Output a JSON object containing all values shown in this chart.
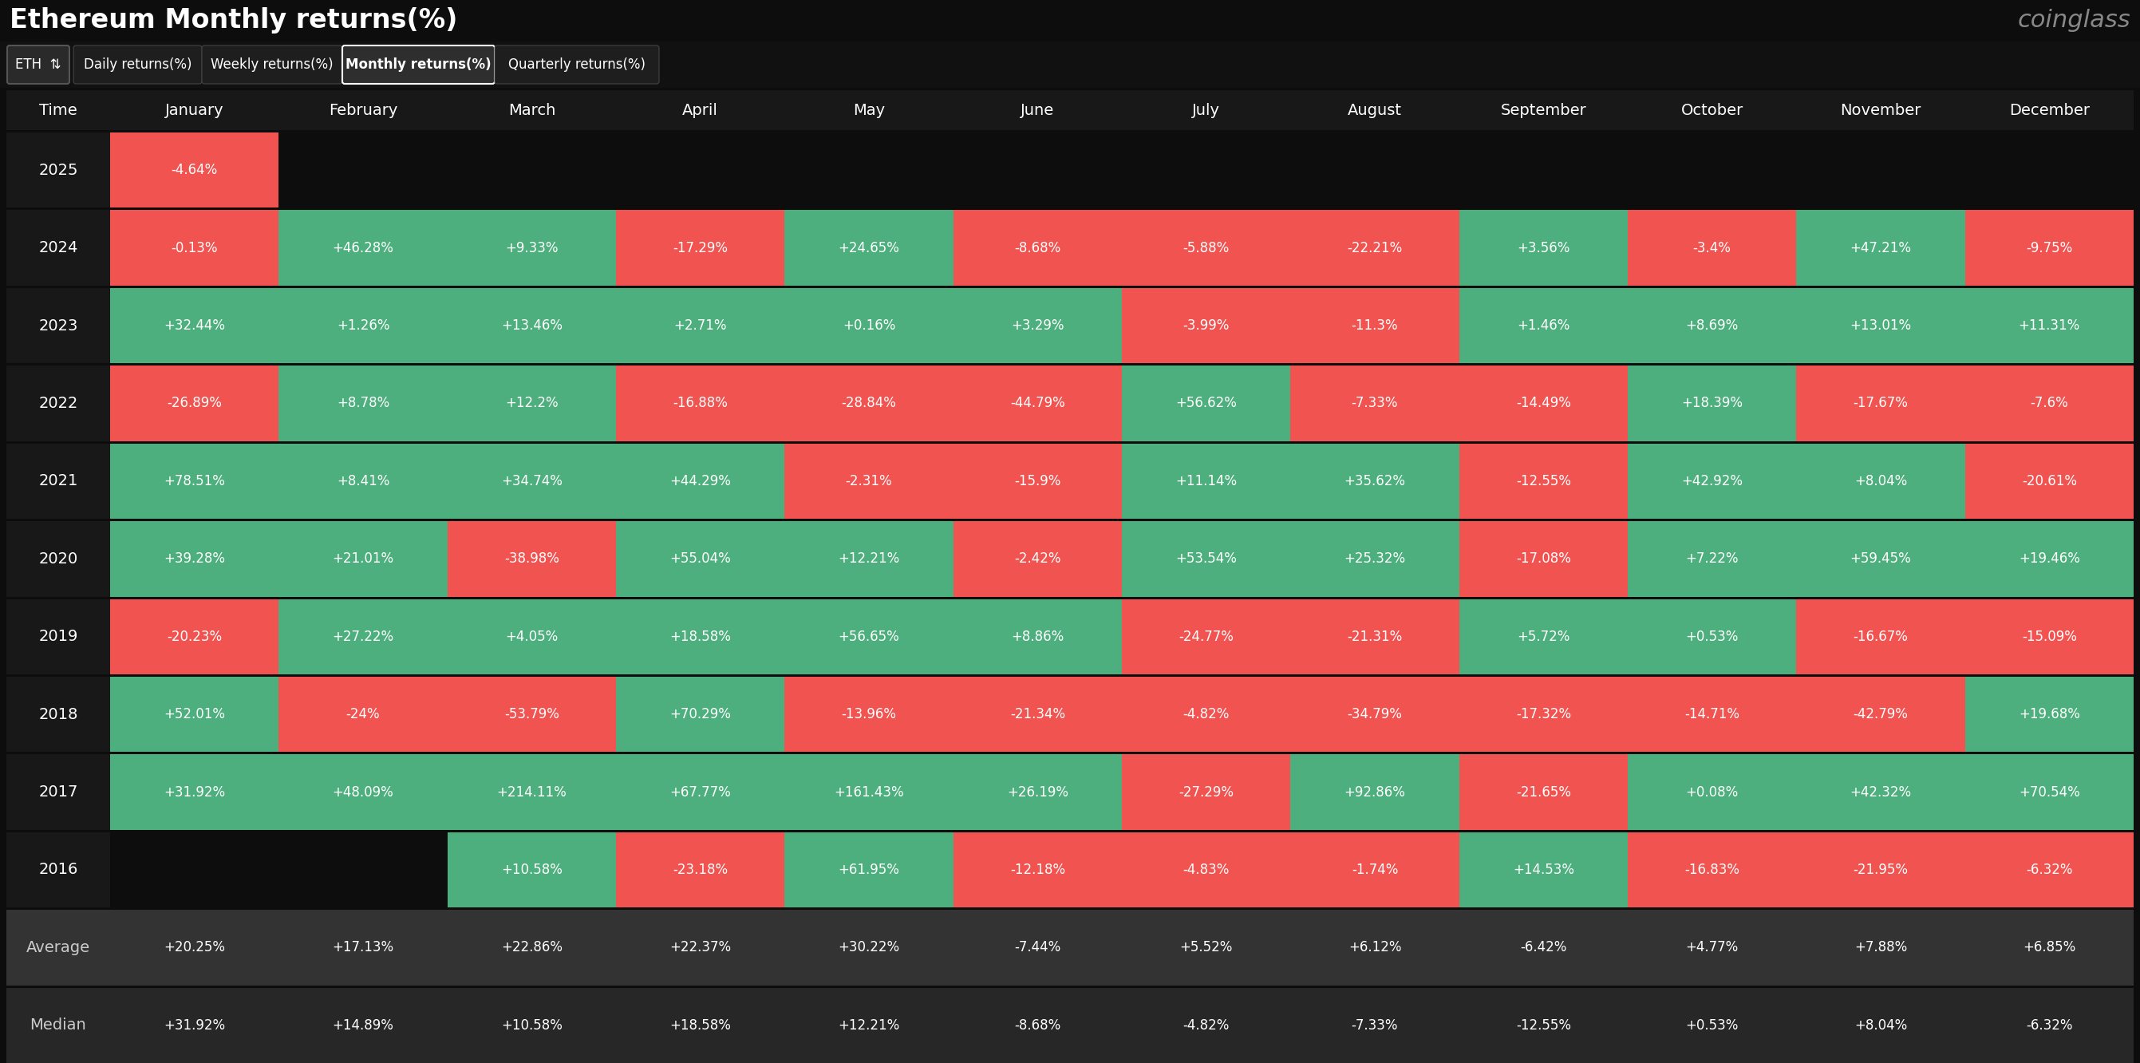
{
  "title": "Ethereum Monthly returns(%)",
  "watermark": "coinglass",
  "background_color": "#0d0d0d",
  "header_bg": "#181818",
  "tab_bar_bg": "#181818",
  "months": [
    "January",
    "February",
    "March",
    "April",
    "May",
    "June",
    "July",
    "August",
    "September",
    "October",
    "November",
    "December"
  ],
  "years": [
    "2025",
    "2024",
    "2023",
    "2022",
    "2021",
    "2020",
    "2019",
    "2018",
    "2017",
    "2016"
  ],
  "avg_label": "Average",
  "median_label": "Median",
  "positive_color": "#4caf7d",
  "negative_color": "#f05350",
  "null_color": "#0d0d0d",
  "avg_bg": "#333333",
  "median_bg": "#272727",
  "time_col_bg": "#181818",
  "cell_data": {
    "2025": [
      "-4.64%",
      null,
      null,
      null,
      null,
      null,
      null,
      null,
      null,
      null,
      null,
      null
    ],
    "2024": [
      "-0.13%",
      "+46.28%",
      "+9.33%",
      "-17.29%",
      "+24.65%",
      "-8.68%",
      "-5.88%",
      "-22.21%",
      "+3.56%",
      "-3.4%",
      "+47.21%",
      "-9.75%"
    ],
    "2023": [
      "+32.44%",
      "+1.26%",
      "+13.46%",
      "+2.71%",
      "+0.16%",
      "+3.29%",
      "-3.99%",
      "-11.3%",
      "+1.46%",
      "+8.69%",
      "+13.01%",
      "+11.31%"
    ],
    "2022": [
      "-26.89%",
      "+8.78%",
      "+12.2%",
      "-16.88%",
      "-28.84%",
      "-44.79%",
      "+56.62%",
      "-7.33%",
      "-14.49%",
      "+18.39%",
      "-17.67%",
      "-7.6%"
    ],
    "2021": [
      "+78.51%",
      "+8.41%",
      "+34.74%",
      "+44.29%",
      "-2.31%",
      "-15.9%",
      "+11.14%",
      "+35.62%",
      "-12.55%",
      "+42.92%",
      "+8.04%",
      "-20.61%"
    ],
    "2020": [
      "+39.28%",
      "+21.01%",
      "-38.98%",
      "+55.04%",
      "+12.21%",
      "-2.42%",
      "+53.54%",
      "+25.32%",
      "-17.08%",
      "+7.22%",
      "+59.45%",
      "+19.46%"
    ],
    "2019": [
      "-20.23%",
      "+27.22%",
      "+4.05%",
      "+18.58%",
      "+56.65%",
      "+8.86%",
      "-24.77%",
      "-21.31%",
      "+5.72%",
      "+0.53%",
      "-16.67%",
      "-15.09%"
    ],
    "2018": [
      "+52.01%",
      "-24%",
      "-53.79%",
      "+70.29%",
      "-13.96%",
      "-21.34%",
      "-4.82%",
      "-34.79%",
      "-17.32%",
      "-14.71%",
      "-42.79%",
      "+19.68%"
    ],
    "2017": [
      "+31.92%",
      "+48.09%",
      "+214.11%",
      "+67.77%",
      "+161.43%",
      "+26.19%",
      "-27.29%",
      "+92.86%",
      "-21.65%",
      "+0.08%",
      "+42.32%",
      "+70.54%"
    ],
    "2016": [
      null,
      null,
      "+10.58%",
      "-23.18%",
      "+61.95%",
      "-12.18%",
      "-4.83%",
      "-1.74%",
      "+14.53%",
      "-16.83%",
      "-21.95%",
      "-6.32%"
    ]
  },
  "average_data": [
    "+20.25%",
    "+17.13%",
    "+22.86%",
    "+22.37%",
    "+30.22%",
    "-7.44%",
    "+5.52%",
    "+6.12%",
    "-6.42%",
    "+4.77%",
    "+7.88%",
    "+6.85%"
  ],
  "median_data": [
    "+31.92%",
    "+14.89%",
    "+10.58%",
    "+18.58%",
    "+12.21%",
    "-8.68%",
    "-4.82%",
    "-7.33%",
    "-12.55%",
    "+0.53%",
    "+8.04%",
    "-6.32%"
  ]
}
